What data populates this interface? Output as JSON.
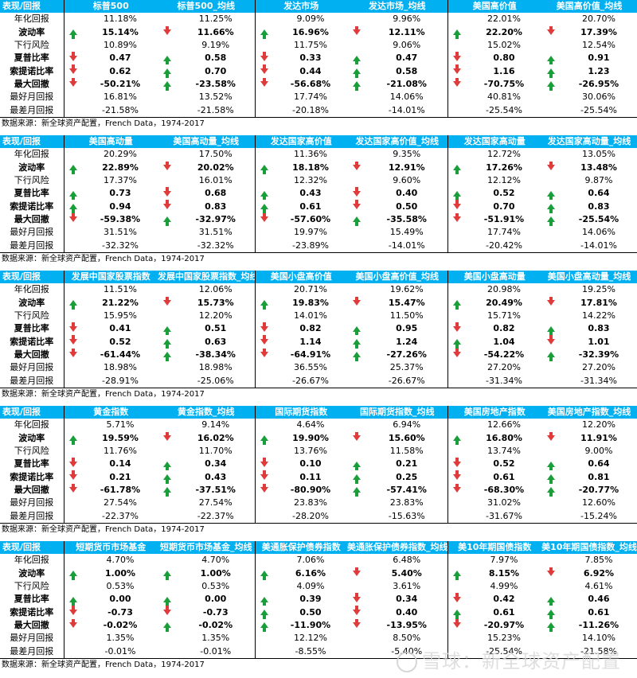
{
  "row_labels": [
    "年化回报",
    "波动率",
    "下行风险",
    "夏普比率",
    "索提诺比率",
    "最大回撤",
    "最好月回报",
    "最差月回报"
  ],
  "header_label": "表现/回报",
  "source": "数据来源：新全球资产配置，French Data，1974-2017",
  "watermark": "雪球：新全球资产配置",
  "colors": {
    "header_bg": "#00b0f0",
    "up": "#1a9e3a",
    "down": "#e03b3b"
  },
  "tables": [
    {
      "columns": [
        "标普500",
        "标普500_均线",
        "发达市场",
        "发达市场_均线",
        "美国高价值",
        "美国高价值_均线"
      ],
      "rows": [
        {
          "a": [
            "",
            "",
            "",
            "",
            "",
            ""
          ],
          "v": [
            "11.18%",
            "11.25%",
            "9.09%",
            "9.96%",
            "22.01%",
            "20.70%"
          ]
        },
        {
          "a": [
            "up",
            "down",
            "up",
            "down",
            "up",
            "down"
          ],
          "v": [
            "15.14%",
            "11.66%",
            "16.96%",
            "12.11%",
            "22.20%",
            "17.39%"
          ]
        },
        {
          "a": [
            "",
            "",
            "",
            "",
            "",
            ""
          ],
          "v": [
            "10.89%",
            "9.19%",
            "11.75%",
            "9.06%",
            "15.02%",
            "12.54%"
          ]
        },
        {
          "a": [
            "down",
            "up",
            "down",
            "up",
            "down",
            "up"
          ],
          "v": [
            "0.47",
            "0.58",
            "0.33",
            "0.47",
            "0.80",
            "0.91"
          ]
        },
        {
          "a": [
            "down",
            "up",
            "down",
            "up",
            "down",
            "up"
          ],
          "v": [
            "0.62",
            "0.70",
            "0.44",
            "0.58",
            "1.16",
            "1.23"
          ]
        },
        {
          "a": [
            "down",
            "up",
            "down",
            "up",
            "down",
            "up"
          ],
          "v": [
            "-50.21%",
            "-23.58%",
            "-56.68%",
            "-21.08%",
            "-70.75%",
            "-26.95%"
          ]
        },
        {
          "a": [
            "",
            "",
            "",
            "",
            "",
            ""
          ],
          "v": [
            "16.81%",
            "13.52%",
            "17.74%",
            "14.06%",
            "40.81%",
            "30.06%"
          ]
        },
        {
          "a": [
            "",
            "",
            "",
            "",
            "",
            ""
          ],
          "v": [
            "-21.58%",
            "-21.58%",
            "-20.18%",
            "-14.01%",
            "-25.54%",
            "-25.54%"
          ]
        }
      ]
    },
    {
      "columns": [
        "美国高动量",
        "美国高动量_均线",
        "发达国家高价值",
        "发达国家高价值_均线",
        "发达国家高动量",
        "发达国家高动量_均线"
      ],
      "rows": [
        {
          "a": [
            "",
            "",
            "",
            "",
            "",
            ""
          ],
          "v": [
            "20.29%",
            "17.50%",
            "11.36%",
            "9.35%",
            "12.72%",
            "13.05%"
          ]
        },
        {
          "a": [
            "up",
            "down",
            "up",
            "down",
            "up",
            "down"
          ],
          "v": [
            "22.89%",
            "20.02%",
            "18.18%",
            "12.91%",
            "17.26%",
            "13.48%"
          ]
        },
        {
          "a": [
            "",
            "",
            "",
            "",
            "",
            ""
          ],
          "v": [
            "17.37%",
            "16.01%",
            "12.32%",
            "9.60%",
            "12.12%",
            "9.87%"
          ]
        },
        {
          "a": [
            "up",
            "down",
            "up",
            "down",
            "up",
            "up"
          ],
          "v": [
            "0.73",
            "0.68",
            "0.43",
            "0.40",
            "0.52",
            "0.64"
          ]
        },
        {
          "a": [
            "up",
            "down",
            "up",
            "down",
            "down",
            "up"
          ],
          "v": [
            "0.94",
            "0.83",
            "0.61",
            "0.50",
            "0.70",
            "0.83"
          ]
        },
        {
          "a": [
            "down",
            "up",
            "down",
            "up",
            "down",
            "up"
          ],
          "v": [
            "-59.38%",
            "-32.97%",
            "-57.60%",
            "-35.58%",
            "-51.91%",
            "-25.54%"
          ]
        },
        {
          "a": [
            "",
            "",
            "",
            "",
            "",
            ""
          ],
          "v": [
            "31.51%",
            "31.51%",
            "19.97%",
            "15.49%",
            "17.74%",
            "14.06%"
          ]
        },
        {
          "a": [
            "",
            "",
            "",
            "",
            "",
            ""
          ],
          "v": [
            "-32.32%",
            "-32.32%",
            "-23.89%",
            "-14.01%",
            "-20.42%",
            "-14.01%"
          ]
        }
      ]
    },
    {
      "columns": [
        "发展中国家股票指数",
        "发展中国家股票指数_均线",
        "美国小盘高价值",
        "美国小盘高价值_均线",
        "美国小盘高动量",
        "美国小盘高动量_均线"
      ],
      "rows": [
        {
          "a": [
            "",
            "",
            "",
            "",
            "",
            ""
          ],
          "v": [
            "11.51%",
            "12.06%",
            "20.71%",
            "19.62%",
            "20.98%",
            "19.25%"
          ]
        },
        {
          "a": [
            "up",
            "down",
            "up",
            "down",
            "up",
            "down"
          ],
          "v": [
            "21.22%",
            "15.73%",
            "19.83%",
            "15.47%",
            "20.49%",
            "17.81%"
          ]
        },
        {
          "a": [
            "",
            "",
            "",
            "",
            "",
            ""
          ],
          "v": [
            "15.95%",
            "12.20%",
            "14.01%",
            "11.50%",
            "15.71%",
            "14.22%"
          ]
        },
        {
          "a": [
            "down",
            "up",
            "down",
            "up",
            "down",
            "up"
          ],
          "v": [
            "0.41",
            "0.51",
            "0.82",
            "0.95",
            "0.82",
            "0.83"
          ]
        },
        {
          "a": [
            "down",
            "up",
            "down",
            "up",
            "up",
            "down"
          ],
          "v": [
            "0.52",
            "0.63",
            "1.14",
            "1.24",
            "1.04",
            "1.01"
          ]
        },
        {
          "a": [
            "down",
            "up",
            "down",
            "up",
            "down",
            "up"
          ],
          "v": [
            "-61.44%",
            "-38.34%",
            "-64.91%",
            "-27.26%",
            "-54.22%",
            "-32.39%"
          ]
        },
        {
          "a": [
            "",
            "",
            "",
            "",
            "",
            ""
          ],
          "v": [
            "18.98%",
            "18.98%",
            "36.55%",
            "25.37%",
            "27.20%",
            "27.20%"
          ]
        },
        {
          "a": [
            "",
            "",
            "",
            "",
            "",
            ""
          ],
          "v": [
            "-28.91%",
            "-25.06%",
            "-26.67%",
            "-26.67%",
            "-31.34%",
            "-31.34%"
          ]
        }
      ]
    },
    {
      "columns": [
        "黄金指数",
        "黄金指数_均线",
        "国际期货指数",
        "国际期货指数_均线",
        "美国房地产指数",
        "美国房地产指数_均线"
      ],
      "rows": [
        {
          "a": [
            "",
            "",
            "",
            "",
            "",
            ""
          ],
          "v": [
            "5.71%",
            "9.14%",
            "4.64%",
            "6.94%",
            "12.66%",
            "12.20%"
          ]
        },
        {
          "a": [
            "up",
            "down",
            "up",
            "down",
            "up",
            "down"
          ],
          "v": [
            "19.59%",
            "16.02%",
            "19.90%",
            "15.60%",
            "16.80%",
            "11.91%"
          ]
        },
        {
          "a": [
            "",
            "",
            "",
            "",
            "",
            ""
          ],
          "v": [
            "11.76%",
            "11.70%",
            "13.76%",
            "11.58%",
            "13.74%",
            "9.00%"
          ]
        },
        {
          "a": [
            "down",
            "up",
            "down",
            "up",
            "down",
            "up"
          ],
          "v": [
            "0.14",
            "0.34",
            "0.10",
            "0.21",
            "0.52",
            "0.64"
          ]
        },
        {
          "a": [
            "down",
            "up",
            "down",
            "up",
            "down",
            "up"
          ],
          "v": [
            "0.21",
            "0.43",
            "0.11",
            "0.25",
            "0.61",
            "0.81"
          ]
        },
        {
          "a": [
            "down",
            "up",
            "down",
            "up",
            "down",
            "up"
          ],
          "v": [
            "-61.78%",
            "-37.51%",
            "-80.90%",
            "-57.41%",
            "-68.30%",
            "-20.77%"
          ]
        },
        {
          "a": [
            "",
            "",
            "",
            "",
            "",
            ""
          ],
          "v": [
            "27.54%",
            "27.54%",
            "23.83%",
            "23.83%",
            "31.02%",
            "12.60%"
          ]
        },
        {
          "a": [
            "",
            "",
            "",
            "",
            "",
            ""
          ],
          "v": [
            "-22.37%",
            "-22.37%",
            "-28.20%",
            "-15.63%",
            "-31.67%",
            "-15.24%"
          ]
        }
      ]
    },
    {
      "columns": [
        "短期货币市场基金",
        "短期货币市场基金_均线",
        "美通胀保护债券指数",
        "美通胀保护债券指数_均线",
        "美10年期国债指数",
        "美10年期国债指数_均线"
      ],
      "rows": [
        {
          "a": [
            "",
            "",
            "",
            "",
            "",
            ""
          ],
          "v": [
            "4.70%",
            "4.70%",
            "7.06%",
            "6.48%",
            "7.97%",
            "7.85%"
          ]
        },
        {
          "a": [
            "up",
            "up",
            "up",
            "down",
            "up",
            "down"
          ],
          "v": [
            "1.00%",
            "1.00%",
            "6.16%",
            "5.40%",
            "8.15%",
            "6.92%"
          ]
        },
        {
          "a": [
            "",
            "",
            "",
            "",
            "",
            ""
          ],
          "v": [
            "0.53%",
            "0.53%",
            "4.09%",
            "3.61%",
            "4.99%",
            "4.61%"
          ]
        },
        {
          "a": [
            "up",
            "up",
            "up",
            "down",
            "down",
            "up"
          ],
          "v": [
            "0.00",
            "0.00",
            "0.39",
            "0.34",
            "0.42",
            "0.46"
          ]
        },
        {
          "a": [
            "down",
            "down",
            "up",
            "down",
            "up",
            "up"
          ],
          "v": [
            "-0.73",
            "-0.73",
            "0.50",
            "0.40",
            "0.61",
            "0.61"
          ]
        },
        {
          "a": [
            "down",
            "up",
            "up",
            "down",
            "down",
            "up"
          ],
          "v": [
            "-0.02%",
            "-0.02%",
            "-11.90%",
            "-13.95%",
            "-20.97%",
            "-11.26%"
          ]
        },
        {
          "a": [
            "",
            "",
            "",
            "",
            "",
            ""
          ],
          "v": [
            "1.35%",
            "1.35%",
            "12.12%",
            "8.50%",
            "15.23%",
            "14.10%"
          ]
        },
        {
          "a": [
            "",
            "",
            "",
            "",
            "",
            ""
          ],
          "v": [
            "-0.01%",
            "-0.01%",
            "-8.55%",
            "-5.40%",
            "-25.54%",
            "-21.58%"
          ]
        }
      ]
    }
  ]
}
